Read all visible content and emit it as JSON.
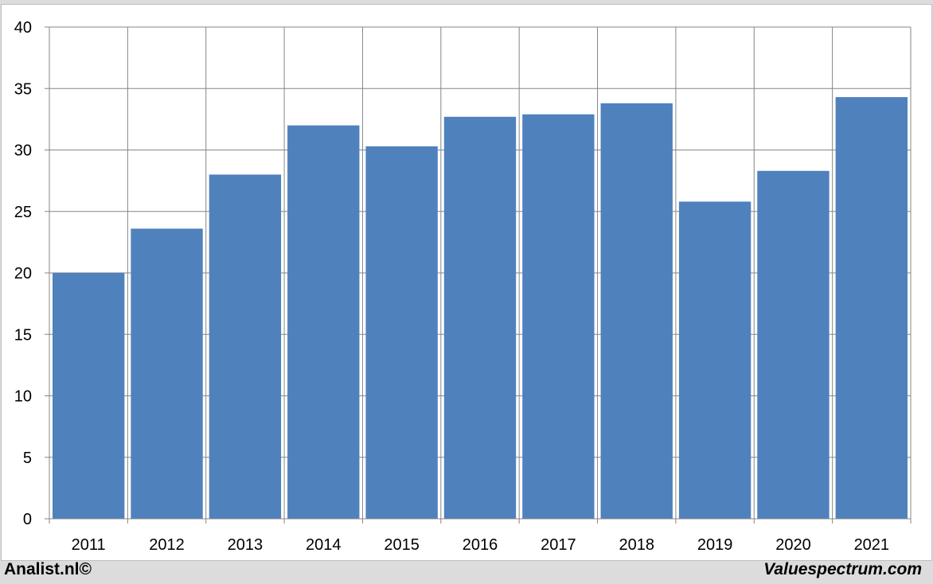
{
  "chart_data": {
    "type": "bar",
    "title": "",
    "xlabel": "",
    "ylabel": "",
    "categories": [
      "2011",
      "2012",
      "2013",
      "2014",
      "2015",
      "2016",
      "2017",
      "2018",
      "2019",
      "2020",
      "2021"
    ],
    "values": [
      20.0,
      23.6,
      28.0,
      32.0,
      30.3,
      32.7,
      32.9,
      33.8,
      25.8,
      28.3,
      34.3
    ],
    "ylim": [
      0,
      40
    ],
    "yticks": [
      "0",
      "5",
      "10",
      "15",
      "20",
      "25",
      "30",
      "35",
      "40"
    ],
    "grid": true,
    "legend": "none",
    "colors": {
      "bar": "#4f81bd",
      "grid": "#868686",
      "axis": "#868686"
    }
  },
  "footer": {
    "left_text": "Analist.nl©",
    "right_text": "Valuespectrum.com"
  }
}
